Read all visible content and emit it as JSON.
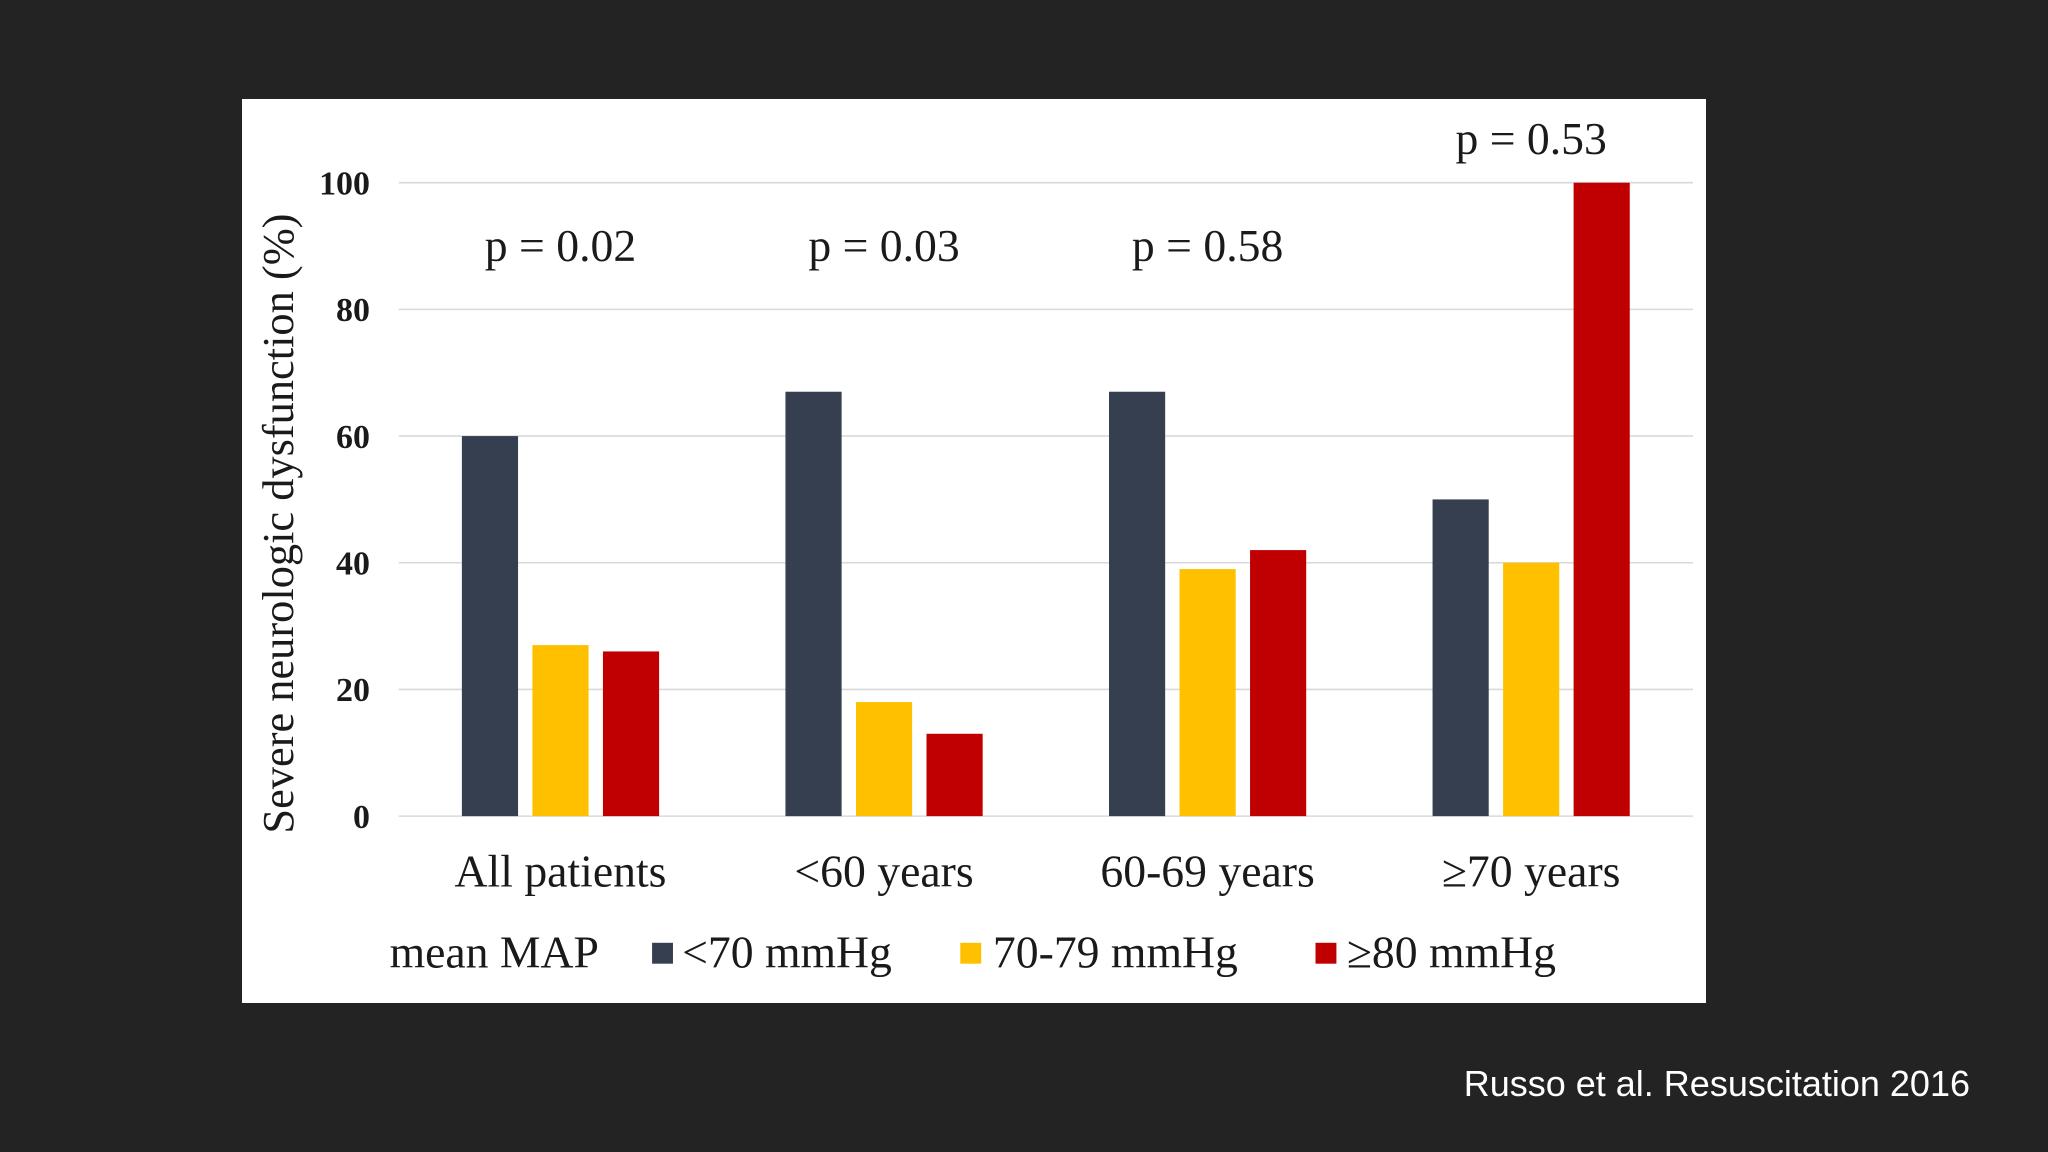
{
  "caption": "Russo et al. Resuscitation 2016",
  "colors": {
    "slide_background": "#232323",
    "panel_background": "#ffffff",
    "gridline": "#d9d9d9",
    "text": "#1a1a1a",
    "caption_text": "#ffffff"
  },
  "chart_data": {
    "type": "bar",
    "ylabel": "Severe neurologic dysfunction (%)",
    "ylim": [
      0,
      100
    ],
    "yticks": [
      0,
      20,
      40,
      60,
      80,
      100
    ],
    "grid": true,
    "legend_position": "bottom",
    "legend_title": "mean MAP",
    "categories": [
      "All patients",
      "<60 years",
      "60-69 years",
      "≥70 years"
    ],
    "series": [
      {
        "name": "<70 mmHg",
        "color": "#353f4f",
        "values": [
          60,
          67,
          67,
          50
        ]
      },
      {
        "name": "70-79 mmHg",
        "color": "#ffc000",
        "values": [
          27,
          18,
          39,
          40
        ]
      },
      {
        "name": "≥80 mmHg",
        "color": "#c00000",
        "values": [
          26,
          13,
          42,
          100
        ]
      }
    ],
    "annotations": [
      "p = 0.02",
      "p = 0.03",
      "p = 0.58",
      "p = 0.53"
    ]
  }
}
